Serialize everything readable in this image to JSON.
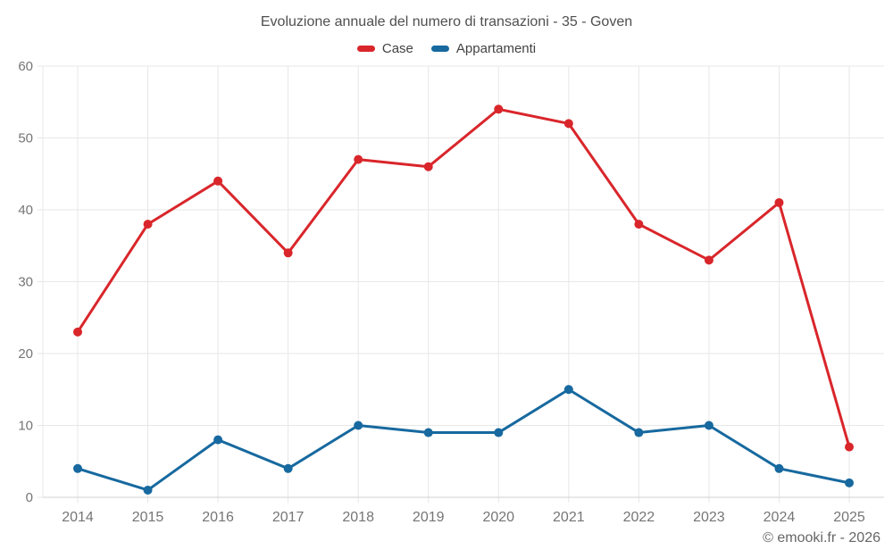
{
  "header": {
    "title": "Evoluzione annuale del numero di transazioni - 35 - Goven"
  },
  "footer": {
    "copyright": "© emooki.fr - 2026"
  },
  "colors": {
    "case_red": "#d9262b",
    "appartamenti_blue": "#17699f",
    "grid": "#e7e7e7",
    "axis_line": "#d0d0d0",
    "tick_text": "#757575"
  },
  "chart_data": {
    "type": "line",
    "title": "Evoluzione annuale del numero di transazioni - 35 - Goven",
    "categories": [
      "2014",
      "2015",
      "2016",
      "2017",
      "2018",
      "2019",
      "2020",
      "2021",
      "2022",
      "2023",
      "2024",
      "2025"
    ],
    "series": [
      {
        "name": "Case",
        "color": "#d9262b",
        "values": [
          23,
          38,
          44,
          34,
          47,
          46,
          54,
          52,
          38,
          33,
          41,
          7
        ]
      },
      {
        "name": "Appartamenti",
        "color": "#17699f",
        "values": [
          4,
          1,
          8,
          4,
          10,
          9,
          9,
          15,
          9,
          10,
          4,
          2
        ]
      }
    ],
    "xlabel": "",
    "ylabel": "",
    "ylim": [
      0,
      60
    ],
    "yticks": [
      0,
      10,
      20,
      30,
      40,
      50,
      60
    ],
    "grid": true,
    "legend_position": "top",
    "marker_radius": 5,
    "line_width": 3
  }
}
